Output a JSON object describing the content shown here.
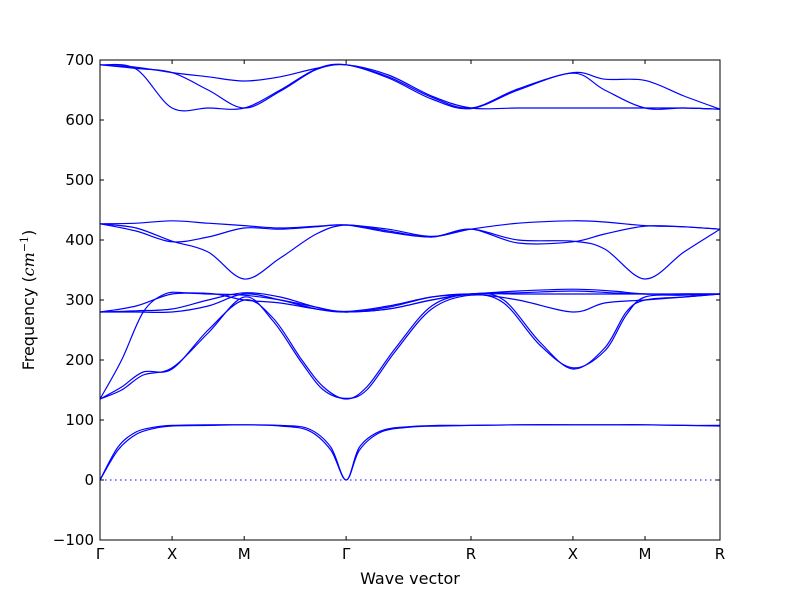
{
  "chart_data": {
    "type": "line",
    "title": "",
    "xlabel": "Wave vector",
    "ylabel": "Frequency (cm⁻¹)",
    "ylabel_main": "Frequency (",
    "ylabel_unit": "cm",
    "ylabel_sup": "−1",
    "ylabel_close": ")",
    "ylim": [
      -100,
      700
    ],
    "yticks": [
      -100,
      0,
      100,
      200,
      300,
      400,
      500,
      600,
      700
    ],
    "xlim": [
      0,
      8.6
    ],
    "high_symmetry_points": [
      {
        "label": "Γ",
        "x": 0
      },
      {
        "label": "X",
        "x": 1
      },
      {
        "label": "M",
        "x": 2
      },
      {
        "label": "Γ",
        "x": 3.414
      },
      {
        "label": "R",
        "x": 5.146
      },
      {
        "label": "X",
        "x": 6.56
      },
      {
        "label": "M",
        "x": 7.56
      },
      {
        "label": "R",
        "x": 8.6
      }
    ],
    "zero_reference_line": 0,
    "grid": false,
    "legend": "none",
    "line_color": "#0000ff",
    "series": [
      {
        "x": [
          0,
          0.25,
          0.5,
          0.75,
          1,
          1.5,
          2,
          2.5,
          2.9,
          3.2,
          3.414,
          3.6,
          3.9,
          4.3,
          4.7,
          5.146,
          5.8,
          6.56,
          7.2,
          7.56,
          8.1,
          8.6
        ],
        "values": [
          0,
          55,
          80,
          88,
          91,
          92,
          92,
          91,
          85,
          55,
          0,
          55,
          82,
          89,
          91,
          91,
          92,
          92,
          92,
          92,
          91,
          91
        ]
      },
      {
        "x": [
          0,
          0.25,
          0.5,
          0.75,
          1,
          1.5,
          2,
          2.5,
          2.9,
          3.2,
          3.414,
          3.6,
          3.9,
          4.3,
          4.7,
          5.146,
          5.8,
          6.56,
          7.2,
          7.56,
          8.1,
          8.6
        ],
        "values": [
          0,
          50,
          76,
          86,
          90,
          91,
          92,
          90,
          82,
          50,
          0,
          50,
          80,
          88,
          90,
          91,
          92,
          92,
          92,
          92,
          91,
          90
        ]
      },
      {
        "x": [
          0,
          0.3,
          0.6,
          1,
          1.5,
          2,
          2.4,
          2.8,
          3.1,
          3.414,
          3.7,
          4.1,
          4.6,
          5.146,
          5.6,
          6.1,
          6.56,
          7.0,
          7.3,
          7.56,
          8.1,
          8.6
        ],
        "values": [
          135,
          155,
          180,
          185,
          250,
          300,
          270,
          200,
          155,
          135,
          155,
          220,
          290,
          310,
          300,
          230,
          185,
          220,
          280,
          300,
          305,
          310
        ]
      },
      {
        "x": [
          0,
          0.3,
          0.6,
          1,
          1.5,
          2,
          2.4,
          2.8,
          3.1,
          3.414,
          3.7,
          4.1,
          4.6,
          5.146,
          5.6,
          6.1,
          6.56,
          7.0,
          7.3,
          7.56,
          8.1,
          8.6
        ],
        "values": [
          135,
          150,
          175,
          187,
          245,
          305,
          265,
          195,
          150,
          136,
          150,
          215,
          285,
          308,
          295,
          225,
          187,
          215,
          275,
          305,
          308,
          310
        ]
      },
      {
        "x": [
          0,
          0.3,
          0.6,
          0.9,
          1.2,
          1.6,
          2,
          2.5,
          3,
          3.414,
          4,
          4.6,
          5.146,
          5.8,
          6.56,
          7.1,
          7.56,
          8.1,
          8.6
        ],
        "values": [
          135,
          200,
          280,
          310,
          312,
          310,
          300,
          295,
          285,
          280,
          285,
          300,
          310,
          310,
          310,
          310,
          310,
          310,
          310
        ]
      },
      {
        "x": [
          0,
          0.5,
          1,
          1.5,
          2,
          2.5,
          3,
          3.414,
          4,
          4.6,
          5.146,
          5.8,
          6.56,
          7.1,
          7.56,
          8.1,
          8.6
        ],
        "values": [
          280,
          280,
          280,
          290,
          310,
          300,
          285,
          280,
          285,
          300,
          310,
          312,
          315,
          312,
          310,
          310,
          310
        ]
      },
      {
        "x": [
          0,
          0.5,
          1,
          1.5,
          2,
          2.5,
          3,
          3.414,
          4,
          4.6,
          5.146,
          5.8,
          6.56,
          7.1,
          7.56,
          8.1,
          8.6
        ],
        "values": [
          280,
          282,
          285,
          300,
          312,
          305,
          288,
          281,
          290,
          305,
          310,
          315,
          318,
          315,
          310,
          310,
          310
        ]
      },
      {
        "x": [
          0,
          0.5,
          1,
          1.5,
          2,
          2.5,
          3,
          3.414,
          4,
          4.6,
          5.146,
          5.8,
          6.56,
          7.0,
          7.56,
          8.1,
          8.6
        ],
        "values": [
          280,
          290,
          310,
          310,
          308,
          300,
          288,
          280,
          288,
          305,
          310,
          300,
          280,
          295,
          300,
          305,
          310
        ]
      },
      {
        "x": [
          0,
          0.5,
          1,
          1.5,
          2,
          2.5,
          3,
          3.414,
          4,
          4.6,
          5.146,
          5.8,
          6.56,
          7.0,
          7.56,
          8.1,
          8.6
        ],
        "values": [
          427,
          420,
          398,
          380,
          335,
          370,
          410,
          425,
          415,
          405,
          418,
          400,
          398,
          385,
          335,
          380,
          418
        ]
      },
      {
        "x": [
          0,
          0.5,
          1,
          1.5,
          2,
          2.5,
          3,
          3.414,
          4,
          4.6,
          5.146,
          5.8,
          6.56,
          7.0,
          7.56,
          8.1,
          8.6
        ],
        "values": [
          427,
          415,
          397,
          405,
          420,
          418,
          422,
          425,
          413,
          405,
          418,
          395,
          397,
          410,
          423,
          422,
          418
        ]
      },
      {
        "x": [
          0,
          0.5,
          1,
          1.5,
          2,
          2.5,
          3,
          3.414,
          4,
          4.6,
          5.146,
          5.8,
          6.56,
          7.0,
          7.56,
          8.1,
          8.6
        ],
        "values": [
          427,
          428,
          432,
          428,
          424,
          420,
          423,
          425,
          418,
          406,
          418,
          428,
          432,
          430,
          424,
          422,
          418
        ]
      },
      {
        "x": [
          0,
          0.5,
          1,
          1.5,
          2,
          2.5,
          3,
          3.414,
          4,
          4.6,
          5.146,
          5.8,
          6.56,
          7.0,
          7.56,
          8.1,
          8.6
        ],
        "values": [
          692,
          685,
          620,
          620,
          620,
          650,
          685,
          692,
          670,
          635,
          619,
          650,
          678,
          650,
          620,
          620,
          618
        ]
      },
      {
        "x": [
          0,
          0.5,
          1,
          1.5,
          2,
          2.5,
          3,
          3.414,
          4,
          4.6,
          5.146,
          5.8,
          6.56,
          7.0,
          7.56,
          8.1,
          8.6
        ],
        "values": [
          692,
          686,
          679,
          650,
          620,
          648,
          684,
          692,
          672,
          638,
          620,
          652,
          679,
          668,
          666,
          640,
          618
        ]
      },
      {
        "x": [
          0,
          0.5,
          1,
          1.5,
          2,
          2.5,
          3,
          3.414,
          4,
          4.6,
          5.146,
          5.8,
          6.56,
          7.0,
          7.56,
          8.1,
          8.6
        ],
        "values": [
          692,
          688,
          679,
          672,
          665,
          672,
          686,
          692,
          675,
          640,
          620,
          620,
          620,
          620,
          620,
          620,
          618
        ]
      }
    ]
  }
}
